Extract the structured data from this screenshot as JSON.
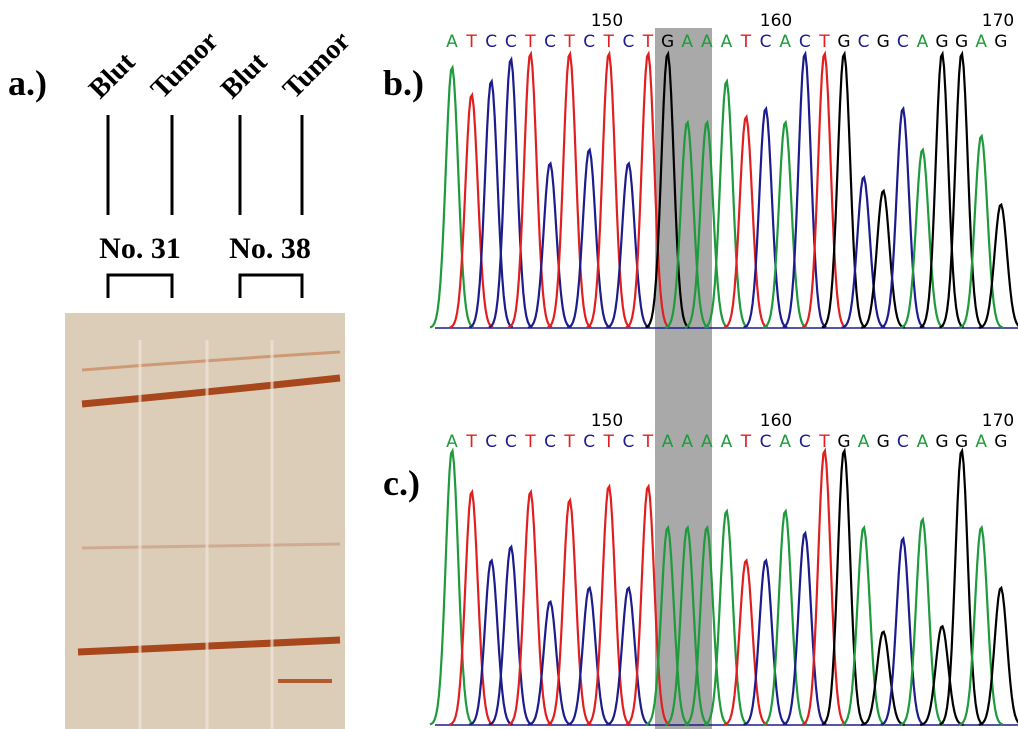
{
  "panel_a": {
    "label": "a.)",
    "lanes": [
      "Blut",
      "Tumor",
      "Blut",
      "Tumor"
    ],
    "samples": [
      "No. 31",
      "No. 38"
    ]
  },
  "panel_b": {
    "label": "b.)",
    "positions": [
      "150",
      "160",
      "170"
    ],
    "sequence": [
      "A",
      "T",
      "C",
      "C",
      "T",
      "C",
      "T",
      "C",
      "T",
      "C",
      "T",
      "G",
      "A",
      "A",
      "A",
      "T",
      "C",
      "A",
      "C",
      "T",
      "G",
      "C",
      "G",
      "C",
      "A",
      "G",
      "G",
      "A",
      "G"
    ]
  },
  "panel_c": {
    "label": "c.)",
    "positions": [
      "150",
      "160",
      "170"
    ],
    "sequence": [
      "A",
      "T",
      "C",
      "C",
      "T",
      "C",
      "T",
      "C",
      "T",
      "C",
      "T",
      "A",
      "A",
      "A",
      "A",
      "T",
      "C",
      "A",
      "C",
      "T",
      "G",
      "A",
      "G",
      "C",
      "A",
      "G",
      "G",
      "A",
      "G"
    ]
  },
  "base_colors": {
    "A": "#1f9a3c",
    "T": "#e02020",
    "C": "#1c1c8c",
    "G": "#000000"
  }
}
